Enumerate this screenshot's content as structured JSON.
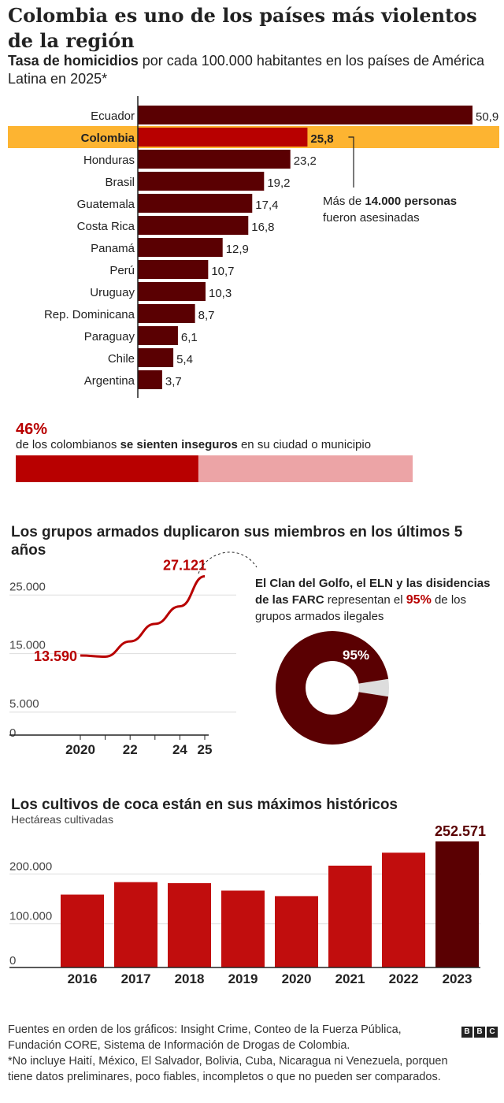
{
  "title": "Colombia es uno de los países más violentos de la región",
  "subtitle_bold": "Tasa de homicidios",
  "subtitle_rest": " por cada 100.000 habitantes en los países de América Latina en 2025*",
  "colors": {
    "dark_bar": "#5a0002",
    "highlight_bar": "#b80000",
    "highlight_band": "#fdb431",
    "light_bar": "#eca4a6",
    "grid": "#dddddd",
    "coca_bar": "#c10d0d",
    "coca_last": "#5a0002"
  },
  "homicide_annotation": {
    "prefix": "Más de ",
    "bold": "14.000 personas",
    "line2": "fueron asesinadas"
  },
  "insecurity": {
    "percent": "46%",
    "value": 46,
    "text_pre": "de los colombianos ",
    "text_bold": "se sienten inseguros",
    "text_post": " en su ciudad o municipio"
  },
  "armed_groups": {
    "title": "Los grupos armados duplicaron sus miembros en los últimos 5 años",
    "annotation_bold": "El Clan del Golfo, el ELN y las disidencias de las FARC",
    "annotation_mid": " representan el ",
    "annotation_pct": "95%",
    "annotation_post": " de los grupos armados ilegales"
  },
  "coca": {
    "title": "Los cultivos de coca están en sus máximos históricos",
    "subtitle": "Hectáreas cultivadas"
  },
  "footer": {
    "sources": "Fuentes en orden de los gráficos: Insight Crime, Conteo de la Fuerza Pública, Fundación CORE, Sistema de Información de Drogas de Colombia.",
    "note": "*No incluye Haití, México, El Salvador, Bolivia, Cuba, Nicaragua ni Venezuela, porquen tiene datos preliminares, poco fiables, incompletos o que no pueden ser comparados.",
    "logo": [
      "B",
      "B",
      "C"
    ]
  },
  "chart_data": [
    {
      "type": "bar",
      "orientation": "horizontal",
      "categories": [
        "Ecuador",
        "Colombia",
        "Honduras",
        "Brasil",
        "Guatemala",
        "Costa Rica",
        "Panamá",
        "Perú",
        "Uruguay",
        "Rep. Dominicana",
        "Paraguay",
        "Chile",
        "Argentina"
      ],
      "values": [
        50.9,
        25.8,
        23.2,
        19.2,
        17.4,
        16.8,
        12.9,
        10.7,
        10.3,
        8.7,
        6.1,
        5.4,
        3.7
      ],
      "labels": [
        "50,9",
        "25,8",
        "23,2",
        "19,2",
        "17,4",
        "16,8",
        "12,9",
        "10,7",
        "10,3",
        "8,7",
        "6,1",
        "5,4",
        "3,7"
      ],
      "highlight": "Colombia",
      "xlim": [
        0,
        50.9
      ]
    },
    {
      "type": "line",
      "x": [
        2020,
        2021,
        2022,
        2023,
        2024,
        2025
      ],
      "values": [
        13590,
        13400,
        16000,
        19000,
        22000,
        27121
      ],
      "start_label": "13.590",
      "end_label": "27.121",
      "xticks": [
        "2020",
        "22",
        "24",
        "25"
      ],
      "xtick_values": [
        2020,
        2022,
        2024,
        2025
      ],
      "yticks": [
        "25.000",
        "15.000",
        "5.000",
        "0"
      ],
      "ytick_values": [
        25000,
        15000,
        5000,
        0
      ],
      "ylim": [
        0,
        28000
      ],
      "xlim": [
        2020,
        2025
      ],
      "grid": true
    },
    {
      "type": "pie",
      "donut": true,
      "values": [
        95,
        5
      ],
      "label": "95%"
    },
    {
      "type": "bar",
      "categories": [
        "2016",
        "2017",
        "2018",
        "2019",
        "2020",
        "2021",
        "2022",
        "2023"
      ],
      "values": [
        146000,
        171000,
        169000,
        154000,
        143000,
        204000,
        230000,
        252571
      ],
      "last_label": "252.571",
      "yticks": [
        "200.000",
        "100.000",
        "0"
      ],
      "ytick_values": [
        200000,
        100000,
        0
      ],
      "ylim": [
        0,
        252571
      ],
      "grid": true
    }
  ]
}
